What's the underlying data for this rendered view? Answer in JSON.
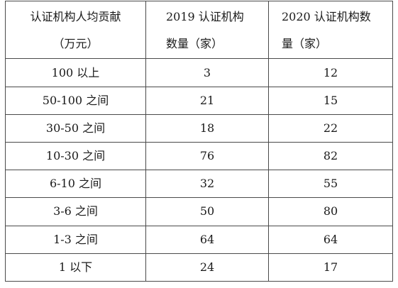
{
  "table": {
    "headers": [
      {
        "line1": "认证机构人均贡献",
        "line2": "（万元）"
      },
      {
        "line1": "2019 认证机构",
        "line2": "数量（家）"
      },
      {
        "line1": "2020 认证机构数",
        "line2": "量（家）"
      }
    ],
    "rows": [
      [
        "100 以上",
        "3",
        "12"
      ],
      [
        "50-100 之间",
        "21",
        "15"
      ],
      [
        "30-50 之间",
        "18",
        "22"
      ],
      [
        "10-30 之间",
        "76",
        "82"
      ],
      [
        "6-10 之间",
        "32",
        "55"
      ],
      [
        "3-6 之间",
        "50",
        "80"
      ],
      [
        "1-3 之间",
        "64",
        "64"
      ],
      [
        "1 以下",
        "24",
        "17"
      ]
    ]
  }
}
